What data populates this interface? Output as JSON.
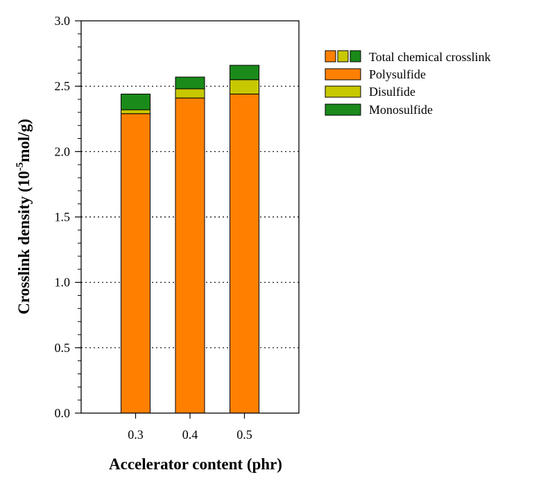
{
  "chart_data": {
    "type": "bar",
    "stacked": true,
    "categories": [
      "0.3",
      "0.4",
      "0.5"
    ],
    "series": [
      {
        "name": "Polysulfide",
        "color": "#ff8000",
        "values": [
          2.29,
          2.41,
          2.44
        ]
      },
      {
        "name": "Disulfide",
        "color": "#c8c800",
        "values": [
          0.03,
          0.07,
          0.11
        ]
      },
      {
        "name": "Monosulfide",
        "color": "#1a8a1a",
        "values": [
          0.12,
          0.09,
          0.11
        ]
      }
    ],
    "totals": [
      2.44,
      2.57,
      2.66
    ],
    "total_legend": {
      "name": "Total chemical crosslink",
      "colors": [
        "#ff8000",
        "#c8c800",
        "#1a8a1a"
      ]
    },
    "xlabel": "Accelerator content (phr)",
    "ylabel_prefix": "Crosslink density (10",
    "ylabel_superscript": "-5",
    "ylabel_suffix": "mol/g)",
    "ylim": [
      0,
      3.0
    ],
    "y_ticks": [
      "0.0",
      "0.5",
      "1.0",
      "1.5",
      "2.0",
      "2.5",
      "3.0"
    ],
    "y_minor_step": 0.1,
    "grid": "horizontal dotted at major y ticks",
    "legend_position": "top-right, outside plot"
  }
}
